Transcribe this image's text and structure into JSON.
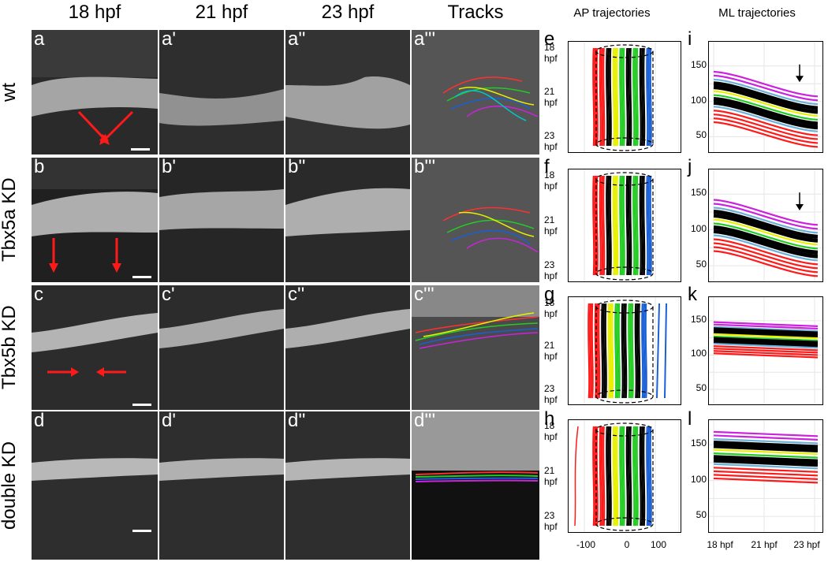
{
  "headers": {
    "col1": "18 hpf",
    "col2": "21 hpf",
    "col3": "23 hpf",
    "col4": "Tracks",
    "col5": "AP trajectories",
    "col6": "ML trajectories"
  },
  "rows": [
    "wt",
    "Tbx5a KD",
    "Tbx5b KD",
    "double KD"
  ],
  "panel_labels": [
    [
      "a",
      "a'",
      "a''",
      "a'''"
    ],
    [
      "b",
      "b'",
      "b''",
      "b'''"
    ],
    [
      "c",
      "c'",
      "c''",
      "c'''"
    ],
    [
      "d",
      "d'",
      "d''",
      "d'''"
    ]
  ],
  "ap_labels": [
    "e",
    "f",
    "g",
    "h"
  ],
  "ml_labels": [
    "i",
    "j",
    "k",
    "l"
  ],
  "ap_time_ticks": [
    "18\nhpf",
    "21\nhpf",
    "23\nhpf"
  ],
  "ap_x_ticks": [
    "-100",
    "0",
    "100"
  ],
  "ml_y_ticks": [
    "150",
    "100",
    "50"
  ],
  "ml_x_ticks": [
    "18 hpf",
    "21 hpf",
    "23 hpf"
  ],
  "colors": {
    "red": "#ff1a1a",
    "black": "#000000",
    "green": "#22cc22",
    "yellow": "#e8f000",
    "blue": "#1a5fd6",
    "purple": "#cc22dd",
    "lightblue": "#6ab0d8"
  }
}
